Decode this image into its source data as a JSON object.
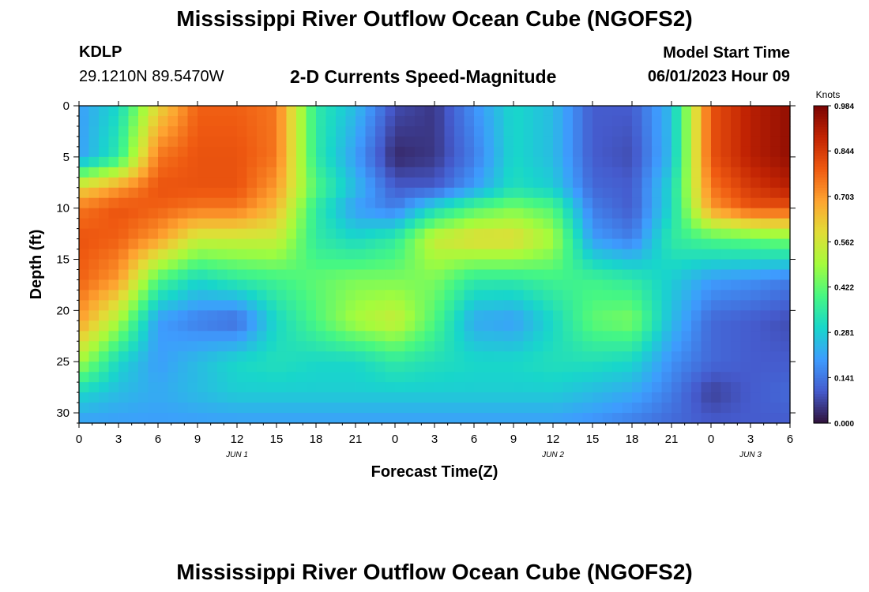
{
  "header": {
    "title": "Mississippi River Outflow Ocean Cube (NGOFS2)",
    "station": "KDLP",
    "coordinates": "29.1210N  89.5470W",
    "parameter": "2-D Currents Speed-Magnitude",
    "model_start_label": "Model Start Time",
    "model_start_value": "06/01/2023 Hour 09"
  },
  "footer": {
    "title": "Mississippi River Outflow Ocean Cube (NGOFS2)"
  },
  "chart_data": {
    "type": "heatmap",
    "xlabel": "Forecast Time(Z)",
    "ylabel": "Depth (ft)",
    "x_ticks": [
      "0",
      "3",
      "6",
      "9",
      "12",
      "15",
      "18",
      "21",
      "0",
      "3",
      "6",
      "9",
      "12",
      "15",
      "18",
      "21",
      "0",
      "3",
      "6"
    ],
    "x_range_hours": [
      0,
      54
    ],
    "date_labels": [
      {
        "label": "JUN 1",
        "hour": 12
      },
      {
        "label": "JUN 2",
        "hour": 36
      },
      {
        "label": "JUN 3",
        "hour": 51
      }
    ],
    "y_ticks": [
      0,
      5,
      10,
      15,
      20,
      25,
      30
    ],
    "ylim": [
      0,
      31
    ],
    "y_inverted": true,
    "colorbar": {
      "unit": "Knots",
      "ticks": [
        "0.984",
        "0.844",
        "0.703",
        "0.562",
        "0.422",
        "0.281",
        "0.141",
        "0.000"
      ],
      "range": [
        0.0,
        0.984
      ],
      "colormap": "turbo"
    },
    "depth_rows": [
      0,
      5,
      8,
      10,
      13,
      17,
      21,
      25,
      28,
      31
    ],
    "time_hours": [
      0,
      3,
      6,
      9,
      12,
      15,
      18,
      21,
      24,
      27,
      30,
      33,
      36,
      39,
      42,
      45,
      48,
      51,
      54
    ],
    "values": [
      [
        0.2,
        0.3,
        0.6,
        0.78,
        0.78,
        0.75,
        0.35,
        0.25,
        0.08,
        0.05,
        0.18,
        0.3,
        0.25,
        0.1,
        0.1,
        0.25,
        0.8,
        0.9,
        0.95
      ],
      [
        0.2,
        0.35,
        0.75,
        0.8,
        0.8,
        0.75,
        0.35,
        0.2,
        0.03,
        0.05,
        0.15,
        0.3,
        0.25,
        0.1,
        0.08,
        0.25,
        0.8,
        0.9,
        0.95
      ],
      [
        0.6,
        0.7,
        0.8,
        0.8,
        0.8,
        0.7,
        0.4,
        0.25,
        0.1,
        0.1,
        0.2,
        0.32,
        0.28,
        0.12,
        0.1,
        0.3,
        0.75,
        0.85,
        0.9
      ],
      [
        0.75,
        0.8,
        0.78,
        0.75,
        0.75,
        0.65,
        0.35,
        0.2,
        0.15,
        0.3,
        0.4,
        0.45,
        0.4,
        0.15,
        0.1,
        0.3,
        0.7,
        0.8,
        0.8
      ],
      [
        0.8,
        0.78,
        0.7,
        0.55,
        0.55,
        0.55,
        0.35,
        0.3,
        0.35,
        0.55,
        0.6,
        0.6,
        0.5,
        0.2,
        0.15,
        0.35,
        0.4,
        0.42,
        0.45
      ],
      [
        0.78,
        0.7,
        0.4,
        0.3,
        0.35,
        0.38,
        0.42,
        0.45,
        0.45,
        0.45,
        0.35,
        0.35,
        0.38,
        0.38,
        0.35,
        0.28,
        0.2,
        0.18,
        0.15
      ],
      [
        0.7,
        0.5,
        0.2,
        0.15,
        0.12,
        0.3,
        0.4,
        0.5,
        0.55,
        0.4,
        0.22,
        0.2,
        0.3,
        0.42,
        0.45,
        0.25,
        0.12,
        0.1,
        0.08
      ],
      [
        0.5,
        0.3,
        0.2,
        0.25,
        0.3,
        0.32,
        0.3,
        0.3,
        0.35,
        0.32,
        0.3,
        0.3,
        0.32,
        0.32,
        0.3,
        0.18,
        0.12,
        0.1,
        0.1
      ],
      [
        0.3,
        0.25,
        0.22,
        0.25,
        0.28,
        0.28,
        0.28,
        0.28,
        0.28,
        0.28,
        0.28,
        0.28,
        0.28,
        0.25,
        0.22,
        0.15,
        0.06,
        0.1,
        0.12
      ],
      [
        0.2,
        0.2,
        0.2,
        0.2,
        0.2,
        0.2,
        0.2,
        0.2,
        0.2,
        0.2,
        0.2,
        0.2,
        0.2,
        0.18,
        0.15,
        0.12,
        0.1,
        0.1,
        0.1
      ]
    ]
  }
}
